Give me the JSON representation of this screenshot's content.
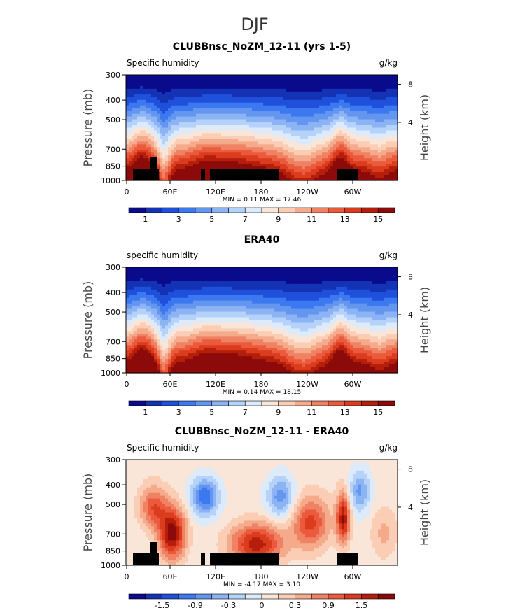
{
  "figure_title": "DJF",
  "chart_data": [
    {
      "type": "contour",
      "title": "CLUBBnsc_NoZM_12-11 (yrs 1-5)",
      "left_label": "Specific humidity",
      "right_label": "g/kg",
      "ylabel": "Pressure (mb)",
      "ylabel_right": "Height (km)",
      "y_ticks": [
        "300",
        "400",
        "500",
        "700",
        "850",
        "1000"
      ],
      "y_right_ticks": [
        "8",
        "4"
      ],
      "x_ticks": [
        "0",
        "60E",
        "120E",
        "180",
        "120W",
        "60W"
      ],
      "stats": "MIN =    0.11   MAX =   17.46",
      "colorbar_labels": [
        "1",
        "3",
        "5",
        "7",
        "9",
        "11",
        "13",
        "15"
      ],
      "field": "abs",
      "masked": true
    },
    {
      "type": "contour",
      "title": "ERA40",
      "left_label": "specific humidity",
      "right_label": "g/kg",
      "ylabel": "Pressure (mb)",
      "ylabel_right": "Height (km)",
      "y_ticks": [
        "300",
        "400",
        "500",
        "700",
        "850",
        "1000"
      ],
      "y_right_ticks": [
        "8",
        "4"
      ],
      "x_ticks": [
        "0",
        "60E",
        "120E",
        "180",
        "120W",
        "60W"
      ],
      "stats": "MIN =    0.14   MAX =   18.15",
      "colorbar_labels": [
        "1",
        "3",
        "5",
        "7",
        "9",
        "11",
        "13",
        "15"
      ],
      "field": "abs",
      "masked": false
    },
    {
      "type": "contour",
      "title": "CLUBBnsc_NoZM_12-11 - ERA40",
      "left_label": "Specific humidity",
      "right_label": "g/kg",
      "ylabel": "Pressure (mb)",
      "ylabel_right": "Height (km)",
      "y_ticks": [
        "300",
        "400",
        "500",
        "700",
        "850",
        "1000"
      ],
      "y_right_ticks": [
        "8",
        "4"
      ],
      "x_ticks": [
        "0",
        "60E",
        "120E",
        "180",
        "120W",
        "60W"
      ],
      "stats": "MIN =   -4.17   MAX =    3.10",
      "colorbar_labels": [
        "-1.5",
        "-0.9",
        "-0.3",
        "0",
        "0.3",
        "0.9",
        "1.5"
      ],
      "field": "diff",
      "masked": true
    }
  ],
  "palette": [
    "#0a0a8c",
    "#1432b4",
    "#1e50dc",
    "#3c78f0",
    "#6496f0",
    "#8cb4f5",
    "#b4d2fa",
    "#dceafa",
    "#fae6d8",
    "#facdb4",
    "#f5aa8c",
    "#f08264",
    "#eb5a3c",
    "#dc3c1e",
    "#b41e0a",
    "#8c0a0a"
  ]
}
